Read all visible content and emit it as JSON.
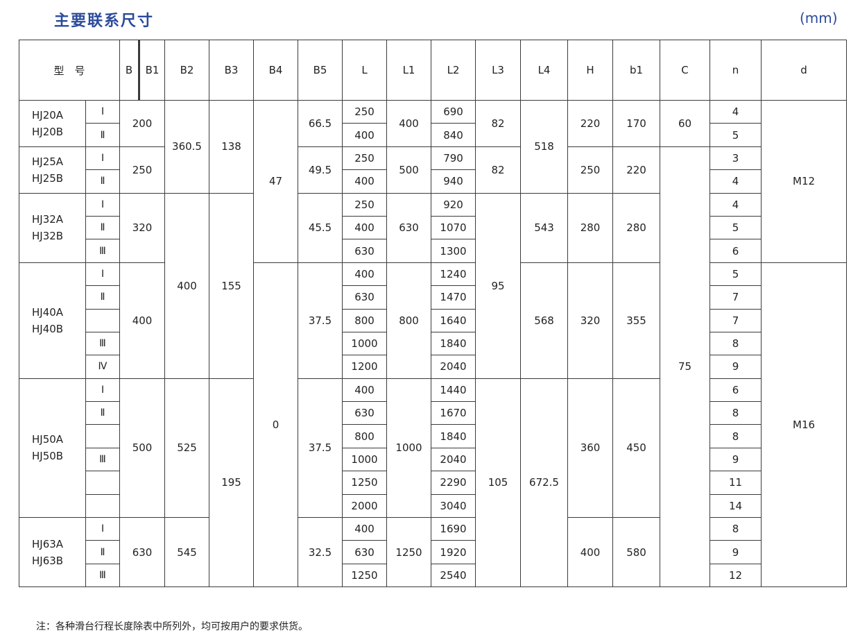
{
  "title": "主要联系尺寸",
  "unit": "(mm)",
  "headers": {
    "model": "型　号",
    "B": "B",
    "B1": "B1",
    "B2": "B2",
    "B3": "B3",
    "B4": "B4",
    "B5": "B5",
    "L": "L",
    "L1": "L1",
    "L2": "L2",
    "L3": "L3",
    "L4": "L4",
    "H": "H",
    "b1": "b1",
    "C": "C",
    "n": "n",
    "d": "d"
  },
  "models": [
    {
      "names": [
        "HJ20A",
        "HJ20B"
      ],
      "grades": [
        "Ⅰ",
        "Ⅱ"
      ],
      "B": "200",
      "B5": "66.5",
      "L": [
        "250",
        "400"
      ],
      "L1": "400",
      "L2": [
        "690",
        "840"
      ],
      "H": "220",
      "b1": "170",
      "n": [
        "4",
        "5"
      ]
    },
    {
      "names": [
        "HJ25A",
        "HJ25B"
      ],
      "grades": [
        "Ⅰ",
        "Ⅱ"
      ],
      "B": "250",
      "B5": "49.5",
      "L": [
        "250",
        "400"
      ],
      "L1": "500",
      "L2": [
        "790",
        "940"
      ],
      "H": "250",
      "b1": "220",
      "n": [
        "3",
        "4"
      ]
    },
    {
      "names": [
        "HJ32A",
        "HJ32B"
      ],
      "grades": [
        "Ⅰ",
        "Ⅱ",
        "Ⅲ"
      ],
      "B": "320",
      "B5": "45.5",
      "L": [
        "250",
        "400",
        "630"
      ],
      "L1": "630",
      "L2": [
        "920",
        "1070",
        "1300"
      ],
      "H": "280",
      "b1": "280",
      "n": [
        "4",
        "5",
        "6"
      ]
    },
    {
      "names": [
        "HJ40A",
        "HJ40B"
      ],
      "grades": [
        "Ⅰ",
        "Ⅱ",
        "",
        "Ⅲ",
        "Ⅳ"
      ],
      "B": "400",
      "B5": "37.5",
      "L": [
        "400",
        "630",
        "800",
        "1000",
        "1200"
      ],
      "L1": "800",
      "L2": [
        "1240",
        "1470",
        "1640",
        "1840",
        "2040"
      ],
      "H": "320",
      "b1": "355",
      "n": [
        "5",
        "7",
        "7",
        "8",
        "9"
      ]
    },
    {
      "names": [
        "HJ50A",
        "HJ50B"
      ],
      "grades": [
        "Ⅰ",
        "Ⅱ",
        "",
        "Ⅲ",
        "",
        ""
      ],
      "B": "500",
      "B5": "37.5",
      "L": [
        "400",
        "630",
        "800",
        "1000",
        "1250",
        "2000"
      ],
      "L1": "1000",
      "L2": [
        "1440",
        "1670",
        "1840",
        "2040",
        "2290",
        "3040"
      ],
      "H": "360",
      "b1": "450",
      "n": [
        "6",
        "8",
        "8",
        "9",
        "11",
        "14"
      ]
    },
    {
      "names": [
        "HJ63A",
        "HJ63B"
      ],
      "grades": [
        "Ⅰ",
        "Ⅱ",
        "Ⅲ"
      ],
      "B": "630",
      "B5": "32.5",
      "L": [
        "400",
        "630",
        "1250"
      ],
      "L1": "1250",
      "L2": [
        "1690",
        "1920",
        "2540"
      ],
      "H": "400",
      "b1": "580",
      "n": [
        "8",
        "9",
        "12"
      ]
    }
  ],
  "merged": {
    "B2": [
      "360.5",
      "400",
      "525",
      "545"
    ],
    "B3": [
      "138",
      "155",
      "195"
    ],
    "B4": [
      "47",
      "0"
    ],
    "L3": [
      "82",
      "82",
      "95",
      "105"
    ],
    "L4": [
      "518",
      "543",
      "568",
      "672.5"
    ],
    "C": [
      "60",
      "75"
    ],
    "d": [
      "M12",
      "M16"
    ]
  },
  "note": "注：各种滑台行程长度除表中所列外，均可按用户的要求供货。"
}
